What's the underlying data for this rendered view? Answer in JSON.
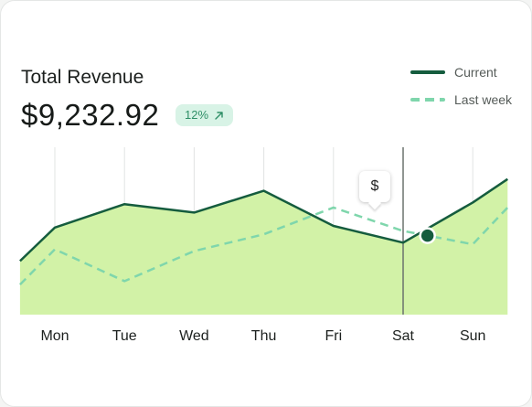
{
  "card": {
    "title": "Total Revenue",
    "amount": "$9,232.92",
    "badge": {
      "text": "12%",
      "icon": "arrow-up-right-icon"
    }
  },
  "legend": {
    "current": "Current",
    "last_week": "Last week"
  },
  "tooltip": {
    "text": "$"
  },
  "colors": {
    "current_line": "#155c3e",
    "last_week_line": "#7fd6ac",
    "area_fill": "#d2f2a7",
    "badge_bg": "#d8f3e6",
    "badge_text": "#2f8f67"
  },
  "chart_data": {
    "type": "area",
    "categories": [
      "Mon",
      "Tue",
      "Wed",
      "Thu",
      "Fri",
      "Sat",
      "Sun"
    ],
    "series": [
      {
        "name": "Current",
        "style": "solid line with filled area",
        "x": [
          0.5,
          1,
          2,
          3,
          4,
          5,
          6,
          7,
          7.5
        ],
        "values": [
          32,
          52,
          66,
          61,
          74,
          53,
          43,
          67,
          81
        ]
      },
      {
        "name": "Last week",
        "style": "dashed line",
        "x": [
          0.5,
          1,
          2,
          3,
          4,
          5,
          6,
          7,
          7.5
        ],
        "values": [
          18,
          39,
          20,
          38,
          48,
          64,
          50,
          42,
          64
        ]
      }
    ],
    "highlight": {
      "category": "Sat",
      "marker_series": "Last week"
    },
    "ylim": [
      0,
      100
    ],
    "grid": "vertical lines at each day",
    "legend": "top-right"
  }
}
